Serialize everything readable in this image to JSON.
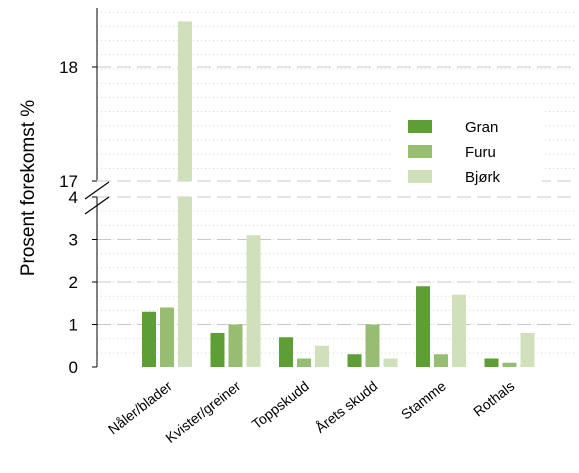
{
  "chart_data": {
    "type": "bar",
    "ylabel": "Prosent forekomst %",
    "xlabel": "",
    "categories": [
      "Nåler/blader",
      "Kvister/greiner",
      "Toppskudd",
      "Årets skudd",
      "Stamme",
      "Rothals"
    ],
    "series": [
      {
        "name": "Gran",
        "values": [
          1.3,
          0.8,
          0.7,
          0.3,
          1.9,
          0.2
        ]
      },
      {
        "name": "Furu",
        "values": [
          1.4,
          1.0,
          0.2,
          1.0,
          0.3,
          0.1
        ]
      },
      {
        "name": "Bjørk",
        "values": [
          18.4,
          3.1,
          0.5,
          0.2,
          1.7,
          0.8
        ]
      }
    ],
    "y_axis_break": {
      "lower_range": [
        0,
        4
      ],
      "upper_range": [
        17,
        18.4
      ]
    },
    "yticks_lower": [
      "0",
      "1",
      "2",
      "3",
      "4"
    ],
    "yticks_upper": [
      "17",
      "18"
    ],
    "legend_position": "right",
    "grid": true
  },
  "colors": {
    "Gran": "#5d9e36",
    "Furu": "#97bd72",
    "Bjørk": "#cfe0bb",
    "grid_major": "#c8c8c8",
    "grid_minor": "#d4d4d4",
    "axis": "#000000"
  }
}
